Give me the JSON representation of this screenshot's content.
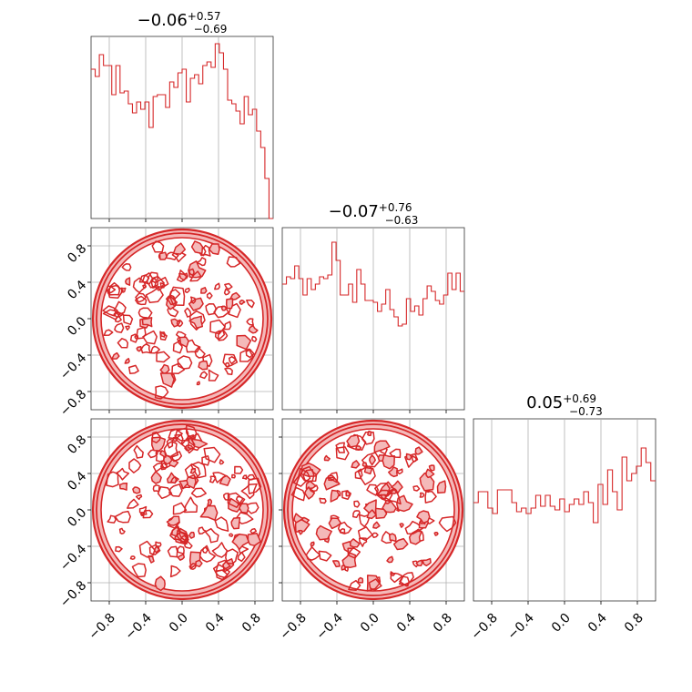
{
  "chart_data": {
    "type": "corner",
    "colors": {
      "series": "#d62728",
      "fill_light": "#f4b9b9",
      "fill_mid": "#e8797a",
      "grid": "#b0b0b0",
      "frame": "#333333"
    },
    "axis_range": [
      -1.0,
      1.0
    ],
    "grid": true,
    "tick_values": [
      -0.8,
      -0.4,
      0.0,
      0.4,
      0.8
    ],
    "tick_labels": [
      "−0.8",
      "−0.4",
      "0.0",
      "0.4",
      "0.8"
    ],
    "titles": [
      {
        "main": "−0.06",
        "sup": "+0.57",
        "sub": "−0.69",
        "median": -0.06,
        "plus": 0.57,
        "minus": 0.69
      },
      {
        "main": "−0.07",
        "sup": "+0.76",
        "sub": "−0.63",
        "median": -0.07,
        "plus": 0.76,
        "minus": 0.63
      },
      {
        "main": "0.05",
        "sup": "+0.69",
        "sub": "−0.73",
        "median": 0.05,
        "plus": 0.69,
        "minus": 0.73
      }
    ],
    "histograms": [
      {
        "bin_edges": [
          -1.0,
          0.05
        ],
        "counts": [
          0.82,
          0.78,
          0.9,
          0.84,
          0.84,
          0.68,
          0.84,
          0.69,
          0.7,
          0.63,
          0.58,
          0.64,
          0.6,
          0.64,
          0.5,
          0.67,
          0.68,
          0.68,
          0.61,
          0.75,
          0.72,
          0.8,
          0.82,
          0.64,
          0.77,
          0.79,
          0.74,
          0.84,
          0.86,
          0.83,
          0.96,
          0.91,
          0.82,
          0.65,
          0.63,
          0.59,
          0.52,
          0.67,
          0.57,
          0.6,
          0.48,
          0.39,
          0.22,
          0.0
        ],
        "ylim": [
          0,
          1.0
        ]
      },
      {
        "bin_edges": [
          -1.0,
          0.05
        ],
        "counts": [
          0.69,
          0.73,
          0.72,
          0.79,
          0.72,
          0.63,
          0.72,
          0.66,
          0.69,
          0.73,
          0.72,
          0.74,
          0.92,
          0.82,
          0.63,
          0.63,
          0.69,
          0.59,
          0.77,
          0.69,
          0.6,
          0.6,
          0.59,
          0.54,
          0.58,
          0.66,
          0.55,
          0.51,
          0.46,
          0.47,
          0.61,
          0.54,
          0.57,
          0.52,
          0.61,
          0.68,
          0.65,
          0.6,
          0.58,
          0.63,
          0.75,
          0.66,
          0.75,
          0.65
        ],
        "ylim": [
          0,
          1.0
        ]
      },
      {
        "bin_edges": [
          -1.0,
          0.05
        ],
        "counts": [
          0.54,
          0.6,
          0.6,
          0.51,
          0.48,
          0.61,
          0.61,
          0.61,
          0.54,
          0.49,
          0.51,
          0.48,
          0.51,
          0.58,
          0.52,
          0.58,
          0.52,
          0.5,
          0.56,
          0.49,
          0.53,
          0.56,
          0.53,
          0.6,
          0.54,
          0.43,
          0.64,
          0.53,
          0.72,
          0.6,
          0.5,
          0.79,
          0.66,
          0.7,
          0.74,
          0.84,
          0.76,
          0.66
        ]
      }
    ],
    "contour_panels": [
      {
        "row": 1,
        "col": 0,
        "support": "disk",
        "center": [
          0,
          0
        ],
        "radius": 1.0
      },
      {
        "row": 2,
        "col": 0,
        "support": "disk",
        "center": [
          0,
          0
        ],
        "radius": 1.0
      },
      {
        "row": 2,
        "col": 1,
        "support": "disk",
        "center": [
          0,
          0
        ],
        "radius": 1.0
      }
    ]
  }
}
